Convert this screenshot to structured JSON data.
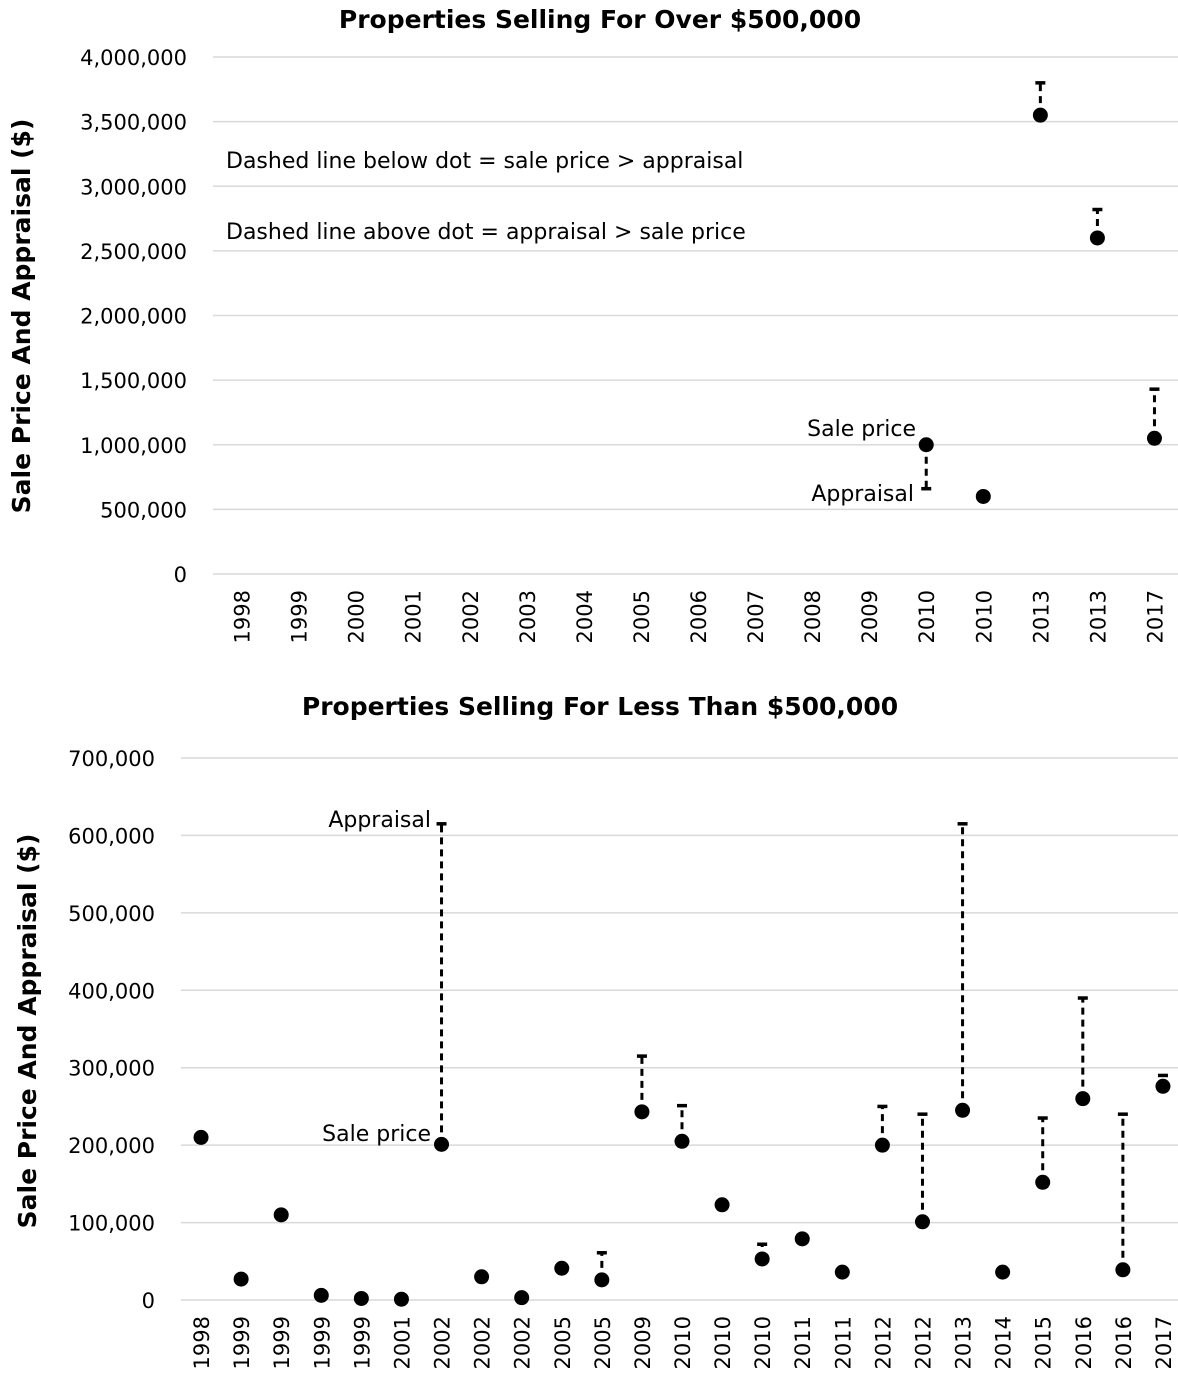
{
  "chart_data": [
    {
      "type": "scatter",
      "title": "Properties Selling For Over $500,000",
      "ylabel": "Sale Price And Appraisal ($)",
      "xlabel": "",
      "ylim": [
        0,
        4000000
      ],
      "yticks": [
        "0",
        "500,000",
        "1,000,000",
        "1,500,000",
        "2,000,000",
        "2,500,000",
        "3,000,000",
        "3,500,000",
        "4,000,000"
      ],
      "categories": [
        "1998",
        "1999",
        "2000",
        "2001",
        "2002",
        "2003",
        "2004",
        "2005",
        "2006",
        "2007",
        "2008",
        "2009",
        "2010",
        "2010",
        "2013",
        "2013",
        "2017"
      ],
      "grid": true,
      "legend": "none",
      "series": [
        {
          "name": "Sale price",
          "values": [
            null,
            null,
            null,
            null,
            null,
            null,
            null,
            null,
            null,
            null,
            null,
            null,
            1000000,
            600000,
            3550000,
            2600000,
            1050000
          ]
        },
        {
          "name": "Appraisal",
          "values": [
            null,
            null,
            null,
            null,
            null,
            null,
            null,
            null,
            null,
            null,
            null,
            null,
            660000,
            null,
            3800000,
            2820000,
            1430000
          ]
        }
      ],
      "annotations": [
        "Dashed line below dot = sale price > appraisal",
        "Dashed line above dot = appraisal > sale price",
        "Sale price",
        "Appraisal"
      ]
    },
    {
      "type": "scatter",
      "title": "Properties Selling For Less Than $500,000",
      "ylabel": "Sale Price And Appraisal ($)",
      "xlabel": "",
      "ylim": [
        0,
        700000
      ],
      "yticks": [
        "0",
        "100,000",
        "200,000",
        "300,000",
        "400,000",
        "500,000",
        "600,000",
        "700,000"
      ],
      "categories": [
        "1998",
        "1999",
        "1999",
        "1999",
        "1999",
        "2001",
        "2002",
        "2002",
        "2002",
        "2005",
        "2005",
        "2009",
        "2010",
        "2010",
        "2010",
        "2011",
        "2011",
        "2012",
        "2012",
        "2013",
        "2014",
        "2015",
        "2016",
        "2016",
        "2017"
      ],
      "grid": true,
      "legend": "none",
      "series": [
        {
          "name": "Sale price",
          "values": [
            210000,
            27000,
            110000,
            6000,
            2000,
            1000,
            201000,
            30000,
            3000,
            41000,
            26000,
            243000,
            205000,
            123000,
            53000,
            79000,
            36000,
            200000,
            101000,
            245000,
            36000,
            152000,
            260000,
            39000,
            276000
          ]
        },
        {
          "name": "Appraisal",
          "values": [
            null,
            null,
            null,
            null,
            null,
            null,
            615000,
            null,
            null,
            null,
            61000,
            315000,
            251000,
            null,
            72000,
            null,
            null,
            250000,
            240000,
            615000,
            null,
            235000,
            390000,
            240000,
            290000
          ]
        }
      ],
      "annotations": [
        "Appraisal",
        "Sale price"
      ]
    }
  ]
}
